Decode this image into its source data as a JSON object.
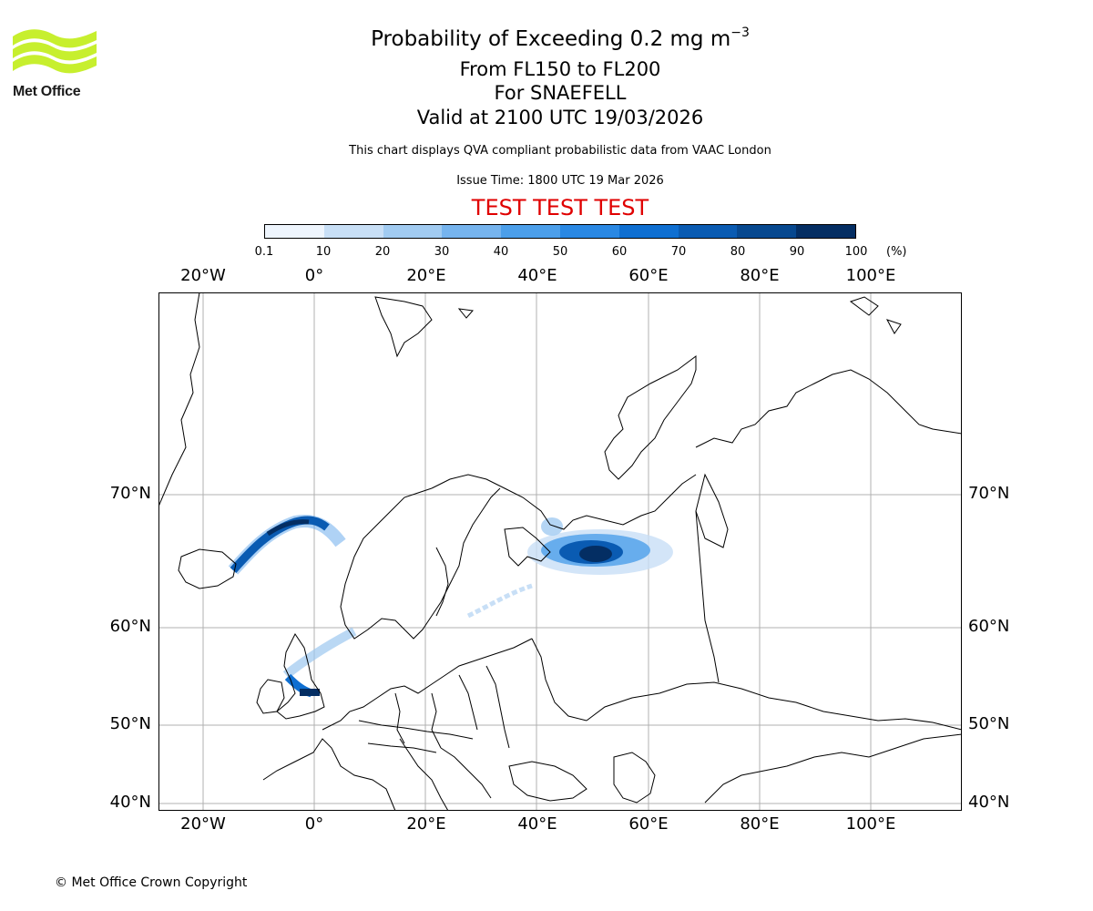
{
  "header": {
    "logo_text": "Met Office",
    "title_main": "Probability of Exceeding 0.2 mg m",
    "title_sup": "−3",
    "title_levels": "From FL150 to FL200",
    "title_volcano": "For SNAEFELL",
    "title_valid": "Valid at 2100 UTC 19/03/2026",
    "subtitle_source": "This chart displays QVA compliant probabilistic data from VAAC London",
    "issue_time": "Issue Time: 1800 UTC 19 Mar 2026",
    "test_banner": "TEST TEST TEST"
  },
  "colorbar": {
    "ticks": [
      "0.1",
      "10",
      "20",
      "30",
      "40",
      "50",
      "60",
      "70",
      "80",
      "90",
      "100"
    ],
    "unit": "(%)",
    "colors": [
      "#eef5fd",
      "#c8dff6",
      "#a1cbf1",
      "#76b4ee",
      "#4c9fea",
      "#2a88e3",
      "#0f6fd1",
      "#0a5bb2",
      "#07488f",
      "#042e63"
    ]
  },
  "axes": {
    "lon_labels": [
      "20°W",
      "0°",
      "20°E",
      "40°E",
      "60°E",
      "80°E",
      "100°E"
    ],
    "lat_labels": [
      "70°N",
      "60°N",
      "50°N",
      "40°N"
    ]
  },
  "footer": {
    "copyright": "© Met Office Crown Copyright"
  }
}
